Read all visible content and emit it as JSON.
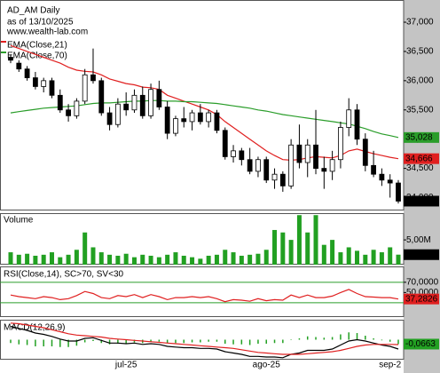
{
  "chart_data": [
    {
      "type": "candlestick",
      "title": "AD_AM Daily",
      "subtitle": "as of 13/10/2025",
      "annotation": "www.wealth-lab.com",
      "categories": [
        null,
        null,
        null,
        null,
        null,
        null,
        null,
        null,
        null,
        null,
        null,
        null,
        null,
        null,
        "jul-25",
        null,
        null,
        null,
        null,
        null,
        null,
        null,
        null,
        null,
        null,
        null,
        null,
        null,
        null,
        null,
        null,
        "ago-25",
        null,
        null,
        null,
        null,
        null,
        null,
        null,
        null,
        null,
        null,
        null,
        null,
        null,
        null,
        "sep-2",
        null
      ],
      "open": [
        36400,
        36300,
        36200,
        36050,
        35900,
        36000,
        35750,
        35500,
        35400,
        35650,
        36100,
        36000,
        35450,
        35250,
        35600,
        35500,
        35750,
        35400,
        35850,
        35550,
        35100,
        35350,
        35300,
        35450,
        35300,
        35450,
        35150,
        34700,
        34800,
        34650,
        34450,
        34650,
        34300,
        34400,
        34200,
        34900,
        34600,
        34900,
        34500,
        34450,
        34650,
        35200,
        35500,
        35000,
        34550,
        34400,
        34300,
        34250
      ],
      "high": [
        36450,
        36350,
        36250,
        36150,
        36050,
        36050,
        35850,
        35600,
        35700,
        36200,
        36550,
        36050,
        35550,
        35700,
        35800,
        35850,
        35900,
        35950,
        36000,
        35650,
        35400,
        35550,
        35500,
        35600,
        35500,
        35500,
        35200,
        34900,
        34850,
        34850,
        34700,
        34700,
        34500,
        34450,
        35000,
        35250,
        35000,
        35500,
        34700,
        34800,
        35300,
        35700,
        35600,
        35100,
        34800,
        34500,
        34400,
        34300
      ],
      "low": [
        36300,
        36150,
        36000,
        35850,
        35800,
        35700,
        35450,
        35300,
        35350,
        35600,
        35950,
        35400,
        35150,
        35200,
        35400,
        35450,
        35350,
        35350,
        35500,
        35000,
        35050,
        35200,
        35150,
        35250,
        35200,
        35100,
        34650,
        34600,
        34550,
        34400,
        34350,
        34250,
        34150,
        34100,
        34150,
        34500,
        34350,
        34400,
        34150,
        34300,
        34500,
        35050,
        34900,
        34450,
        34350,
        34200,
        34000,
        33900
      ],
      "close": [
        36350,
        36200,
        36050,
        35900,
        36000,
        35750,
        35500,
        35400,
        35650,
        36100,
        36000,
        35450,
        35250,
        35600,
        35500,
        35750,
        35400,
        35850,
        35550,
        35100,
        35350,
        35300,
        35450,
        35300,
        35450,
        35150,
        34700,
        34800,
        34650,
        34450,
        34650,
        34300,
        34400,
        34200,
        34900,
        34600,
        34900,
        34500,
        34450,
        34650,
        35200,
        35500,
        35000,
        34550,
        34400,
        34300,
        34250,
        33940
      ],
      "close_last_label": "33,940",
      "up_color": "#ffffff",
      "down_color": "#000000",
      "series": [
        {
          "name": "EMA(Close,21)",
          "color": "#e02020",
          "last_value_label": "34,666",
          "values": [
            36600,
            36550,
            36500,
            36450,
            36400,
            36350,
            36300,
            36230,
            36180,
            36160,
            36150,
            36100,
            36030,
            35990,
            35950,
            35930,
            35890,
            35880,
            35850,
            35750,
            35700,
            35650,
            35600,
            35550,
            35500,
            35420,
            35300,
            35200,
            35100,
            35000,
            34900,
            34800,
            34720,
            34650,
            34640,
            34650,
            34680,
            34700,
            34690,
            34680,
            34720,
            34800,
            34830,
            34790,
            34750,
            34720,
            34690,
            34666
          ]
        },
        {
          "name": "EMA(Close,70)",
          "color": "#2a9d2a",
          "last_value_label": "35,028",
          "values": [
            35450,
            35470,
            35490,
            35510,
            35530,
            35540,
            35550,
            35560,
            35570,
            35590,
            35610,
            35620,
            35620,
            35630,
            35640,
            35650,
            35650,
            35660,
            35660,
            35650,
            35650,
            35640,
            35640,
            35630,
            35620,
            35610,
            35590,
            35570,
            35550,
            35530,
            35500,
            35480,
            35450,
            35420,
            35400,
            35380,
            35360,
            35340,
            35320,
            35300,
            35280,
            35260,
            35220,
            35180,
            35130,
            35090,
            35060,
            35028
          ]
        }
      ],
      "ylim": [
        33780,
        37380
      ],
      "yticks": [
        {
          "value": 34000,
          "label": "34,000"
        },
        {
          "value": 34500,
          "label": "34,500"
        },
        {
          "value": 35000,
          "label": "35,000"
        },
        {
          "value": 35500,
          "label": "35,500"
        },
        {
          "value": 36000,
          "label": "36,000"
        },
        {
          "value": 36500,
          "label": "36,500"
        },
        {
          "value": 37000,
          "label": "37,000"
        }
      ]
    },
    {
      "type": "bar",
      "title": "Volume",
      "color": "#22a022",
      "last_value_label": "2,02M",
      "values": [
        2.5,
        2.0,
        2.2,
        1.8,
        2.0,
        2.5,
        1.5,
        2.0,
        3.0,
        6.5,
        3.5,
        2.5,
        2.0,
        1.8,
        2.2,
        1.5,
        2.0,
        1.8,
        1.5,
        2.0,
        2.5,
        1.8,
        1.5,
        1.2,
        1.8,
        2.0,
        3.0,
        2.5,
        1.8,
        2.0,
        2.2,
        3.0,
        7.0,
        6.5,
        5.0,
        10.0,
        6.5,
        10.0,
        4.0,
        5.0,
        2.5,
        3.5,
        2.8,
        2.0,
        3.0,
        2.5,
        3.5,
        2.02
      ],
      "ylim": [
        0,
        10.4
      ],
      "yticks": [
        {
          "value": 5,
          "label": "5,00M"
        }
      ]
    },
    {
      "type": "line",
      "title": "RSI(Close,14), SC>70, SV<30",
      "levels": [
        70,
        30
      ],
      "level_color": "#2a9d2a",
      "series": [
        {
          "color": "#e02020",
          "last_value_label": "37,2826",
          "values": [
            45,
            42,
            40,
            38,
            42,
            40,
            36,
            38,
            44,
            52,
            48,
            40,
            38,
            44,
            42,
            46,
            40,
            46,
            42,
            36,
            40,
            40,
            42,
            40,
            42,
            38,
            32,
            36,
            35,
            33,
            38,
            34,
            36,
            35,
            45,
            40,
            45,
            40,
            40,
            43,
            50,
            56,
            48,
            42,
            41,
            40,
            40,
            37.2826
          ]
        }
      ],
      "ylim": [
        2,
        101
      ],
      "yticks": [
        {
          "value": 70,
          "label": "70,0000"
        },
        {
          "value": 50,
          "label": "50,0000"
        }
      ]
    },
    {
      "type": "macd",
      "title": "MACD(12,26,9)",
      "histogram": {
        "color": "#22a022",
        "last_value_label": "-0,0663",
        "values": [
          -0.05,
          -0.07,
          -0.08,
          -0.1,
          -0.1,
          -0.1,
          -0.11,
          -0.11,
          -0.09,
          -0.04,
          -0.02,
          -0.05,
          -0.07,
          -0.06,
          -0.06,
          -0.04,
          -0.05,
          -0.03,
          -0.03,
          -0.05,
          -0.05,
          -0.05,
          -0.04,
          -0.04,
          -0.03,
          -0.03,
          -0.06,
          -0.07,
          -0.07,
          -0.08,
          -0.06,
          -0.06,
          -0.05,
          -0.05,
          0,
          0.02,
          0.05,
          0.04,
          0.03,
          0.04,
          0.08,
          0.11,
          0.1,
          0.06,
          0.02,
          -0.01,
          -0.03,
          -0.0663
        ]
      },
      "series": [
        {
          "color": "#000000",
          "values": [
            0.2,
            0.17,
            0.14,
            0.1,
            0.08,
            0.05,
            0.01,
            -0.02,
            -0.02,
            0.02,
            0.03,
            -0.01,
            -0.05,
            -0.05,
            -0.06,
            -0.05,
            -0.07,
            -0.06,
            -0.07,
            -0.1,
            -0.11,
            -0.12,
            -0.12,
            -0.13,
            -0.13,
            -0.14,
            -0.18,
            -0.2,
            -0.22,
            -0.25,
            -0.25,
            -0.26,
            -0.26,
            -0.27,
            -0.22,
            -0.2,
            -0.16,
            -0.16,
            -0.16,
            -0.14,
            -0.08,
            -0.02,
            0,
            -0.02,
            -0.05,
            -0.08,
            -0.1,
            -0.14
          ]
        },
        {
          "color": "#e02020",
          "values": [
            0.25,
            0.24,
            0.22,
            0.2,
            0.18,
            0.15,
            0.12,
            0.09,
            0.07,
            0.06,
            0.05,
            0.04,
            0.02,
            0.01,
            0,
            -0.01,
            -0.02,
            -0.03,
            -0.04,
            -0.05,
            -0.06,
            -0.07,
            -0.08,
            -0.09,
            -0.1,
            -0.11,
            -0.12,
            -0.13,
            -0.15,
            -0.17,
            -0.19,
            -0.2,
            -0.21,
            -0.22,
            -0.22,
            -0.22,
            -0.21,
            -0.2,
            -0.19,
            -0.18,
            -0.16,
            -0.13,
            -0.1,
            -0.08,
            -0.07,
            -0.07,
            -0.07,
            -0.0737
          ]
        }
      ],
      "ylim": [
        -0.3,
        0.3
      ]
    }
  ]
}
